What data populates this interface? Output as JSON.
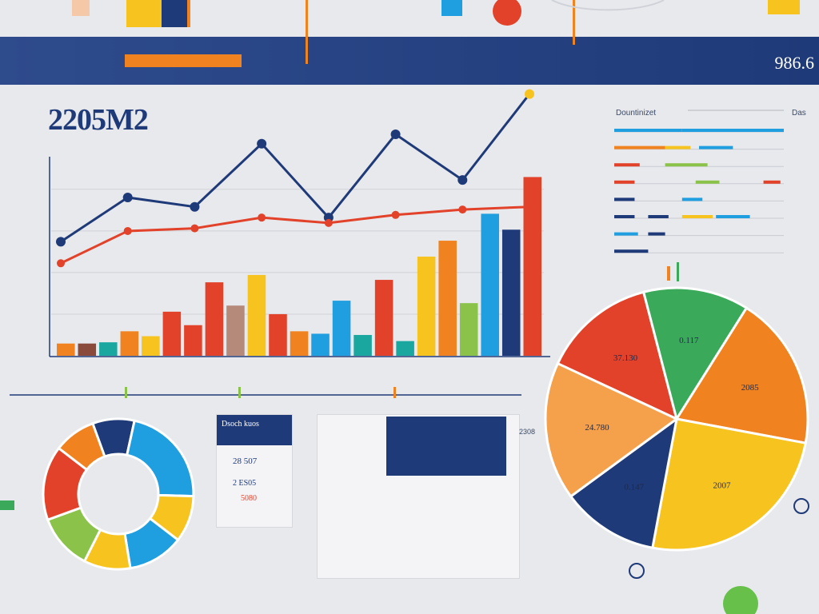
{
  "header": {
    "left_labels": [
      "",
      "",
      "",
      ""
    ],
    "right_label": "",
    "right_number": "986.6"
  },
  "main_title": "2205M2",
  "legend_title_left": "Dountinizet",
  "legend_title_right": "Das",
  "cards": {
    "mini_table": {
      "title": "Dsoch kuos",
      "values": [
        "28 507",
        "2 ES05",
        "5080"
      ]
    },
    "center_box": {
      "value": "2308"
    }
  },
  "pie_labels": [
    "37.130",
    "0.117",
    "2085",
    "2007",
    "0.147",
    "24.780"
  ],
  "colors": {
    "navy": "#1f3a78",
    "red": "#e2422a",
    "orange": "#f0821f",
    "yellow": "#f7c31f",
    "green": "#3aaa5a",
    "lime": "#8bc34a",
    "blue": "#1f9ee0",
    "teal": "#1aa7a0",
    "brown": "#8a4b3c"
  },
  "chart_data": [
    {
      "type": "bar",
      "title": "",
      "bars": [
        {
          "value": 10,
          "color": "#f0821f"
        },
        {
          "value": 10,
          "color": "#8a4b3c"
        },
        {
          "value": 11,
          "color": "#1aa7a0"
        },
        {
          "value": 20,
          "color": "#f0821f"
        },
        {
          "value": 16,
          "color": "#f7c31f"
        },
        {
          "value": 36,
          "color": "#e2422a"
        },
        {
          "value": 25,
          "color": "#e2422a"
        },
        {
          "value": 60,
          "color": "#e2422a"
        },
        {
          "value": 41,
          "color": "#b58a7a"
        },
        {
          "value": 66,
          "color": "#f7c31f"
        },
        {
          "value": 34,
          "color": "#e2422a"
        },
        {
          "value": 20,
          "color": "#f0821f"
        },
        {
          "value": 18,
          "color": "#1f9ee0"
        },
        {
          "value": 45,
          "color": "#1f9ee0"
        },
        {
          "value": 17,
          "color": "#1aa7a0"
        },
        {
          "value": 62,
          "color": "#e2422a"
        },
        {
          "value": 12,
          "color": "#1aa7a0"
        },
        {
          "value": 81,
          "color": "#f7c31f"
        },
        {
          "value": 94,
          "color": "#f0821f"
        },
        {
          "value": 43,
          "color": "#8bc34a"
        },
        {
          "value": 116,
          "color": "#1f9ee0"
        },
        {
          "value": 103,
          "color": "#1f3a78"
        },
        {
          "value": 146,
          "color": "#e2422a"
        }
      ],
      "ylim": [
        0,
        160
      ],
      "grid": true
    },
    {
      "type": "line",
      "series": [
        {
          "color": "#1f3a78",
          "points": [
            [
              0,
              70
            ],
            [
              1,
              103
            ],
            [
              2,
              96
            ],
            [
              3,
              143
            ],
            [
              4,
              88
            ],
            [
              5,
              150
            ],
            [
              6,
              116
            ],
            [
              7,
              180
            ]
          ]
        },
        {
          "color": "#e2422a",
          "points": [
            [
              0,
              54
            ],
            [
              1,
              78
            ],
            [
              2,
              80
            ],
            [
              3,
              88
            ],
            [
              4,
              84
            ],
            [
              5,
              90
            ],
            [
              6,
              94
            ],
            [
              7,
              96
            ]
          ]
        }
      ],
      "ylim": [
        0,
        200
      ]
    },
    {
      "type": "pie",
      "slices": [
        {
          "value": 14,
          "color": "#e2422a"
        },
        {
          "value": 13,
          "color": "#3aaa5a"
        },
        {
          "value": 19,
          "color": "#f0821f"
        },
        {
          "value": 25,
          "color": "#f7c31f"
        },
        {
          "value": 12,
          "color": "#1f3a78"
        },
        {
          "value": 17,
          "color": "#f5a04a"
        }
      ]
    },
    {
      "type": "pie",
      "variant": "donut",
      "slices": [
        {
          "value": 9,
          "color": "#1f3a78"
        },
        {
          "value": 22,
          "color": "#1f9ee0"
        },
        {
          "value": 10,
          "color": "#f7c31f"
        },
        {
          "value": 12,
          "color": "#1f9ee0"
        },
        {
          "value": 10,
          "color": "#f7c31f"
        },
        {
          "value": 12,
          "color": "#8bc34a"
        },
        {
          "value": 16,
          "color": "#e2422a"
        },
        {
          "value": 9,
          "color": "#f0821f"
        }
      ]
    },
    {
      "type": "bar",
      "variant": "gantt",
      "rows": [
        {
          "segments": [
            [
              0,
              40,
              "#1f9ee0"
            ],
            [
              40,
              100,
              "#1f9ee0"
            ]
          ]
        },
        {
          "segments": [
            [
              0,
              30,
              "#f0821f"
            ],
            [
              30,
              45,
              "#f7c31f"
            ],
            [
              50,
              70,
              "#1f9ee0"
            ]
          ]
        },
        {
          "segments": [
            [
              0,
              15,
              "#e2422a"
            ],
            [
              30,
              55,
              "#8bc34a"
            ]
          ]
        },
        {
          "segments": [
            [
              0,
              12,
              "#e2422a"
            ],
            [
              48,
              62,
              "#8bc34a"
            ],
            [
              88,
              98,
              "#e2422a"
            ]
          ]
        },
        {
          "segments": [
            [
              0,
              12,
              "#1f3a78"
            ],
            [
              40,
              52,
              "#1f9ee0"
            ]
          ]
        },
        {
          "segments": [
            [
              0,
              12,
              "#1f3a78"
            ],
            [
              20,
              32,
              "#1f3a78"
            ],
            [
              40,
              58,
              "#f7c31f"
            ],
            [
              60,
              80,
              "#1f9ee0"
            ]
          ]
        },
        {
          "segments": [
            [
              0,
              14,
              "#1f9ee0"
            ],
            [
              20,
              30,
              "#1f3a78"
            ]
          ]
        },
        {
          "segments": [
            [
              0,
              20,
              "#1f3a78"
            ]
          ]
        }
      ]
    }
  ]
}
